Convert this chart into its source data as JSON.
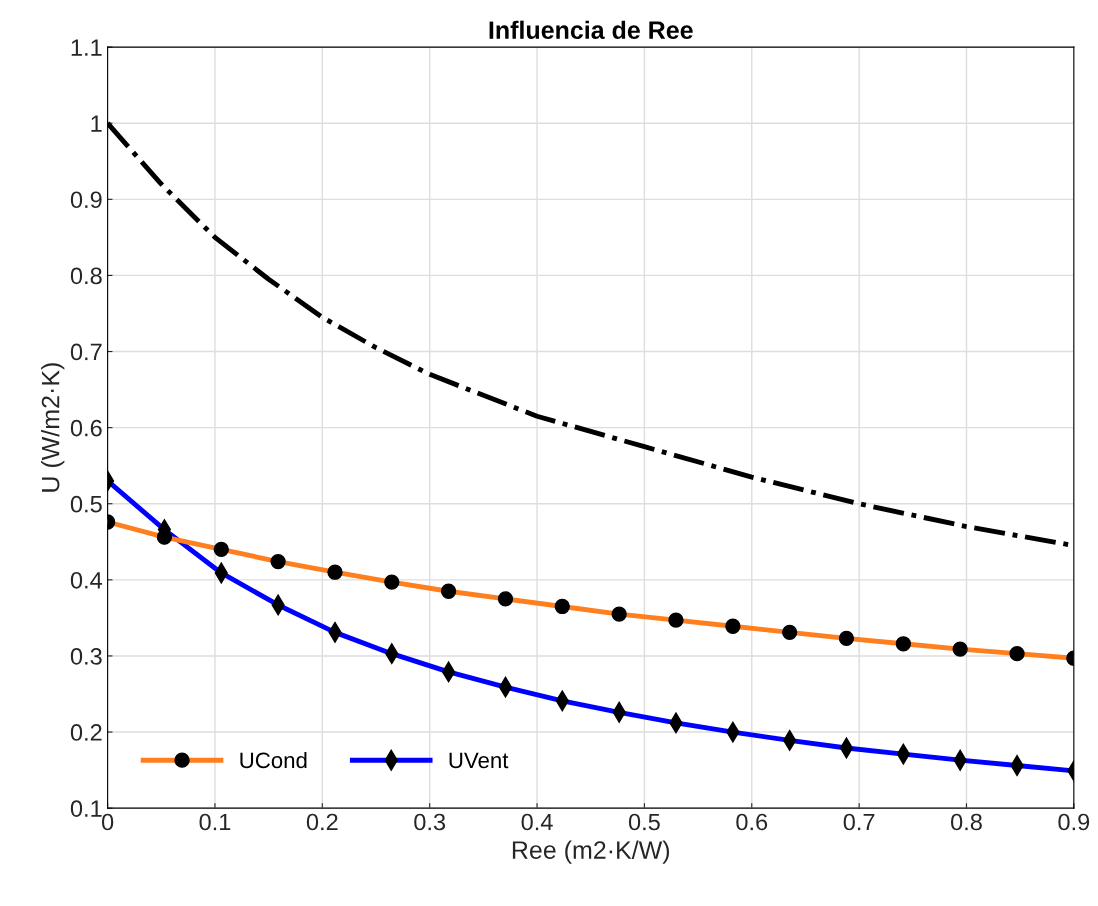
{
  "chart_data": {
    "type": "line",
    "title": "Influencia de Ree",
    "xlabel": "Ree (m2·K/W)",
    "ylabel": "U (W/m2·K)",
    "xlim": [
      0,
      0.9
    ],
    "ylim": [
      0.1,
      1.1
    ],
    "xticks": [
      0,
      0.1,
      0.2,
      0.3,
      0.4,
      0.5,
      0.6,
      0.7,
      0.8,
      0.9
    ],
    "yticks": [
      0.1,
      0.2,
      0.3,
      0.4,
      0.5,
      0.6,
      0.7,
      0.8,
      0.9,
      1,
      1.1
    ],
    "grid": true,
    "legend": "bottom left",
    "series": [
      {
        "name": "UCond",
        "color": "#ff7f1f",
        "marker": "circle",
        "line_style": "solid",
        "x": [
          0,
          0.0529,
          0.1059,
          0.1588,
          0.2118,
          0.2647,
          0.3176,
          0.3706,
          0.4235,
          0.4765,
          0.5294,
          0.5824,
          0.6353,
          0.6882,
          0.7412,
          0.7941,
          0.8471,
          0.9
        ],
        "values": [
          0.476,
          0.456,
          0.44,
          0.424,
          0.41,
          0.397,
          0.385,
          0.375,
          0.365,
          0.355,
          0.347,
          0.339,
          0.331,
          0.323,
          0.316,
          0.309,
          0.303,
          0.297
        ]
      },
      {
        "name": "UVent",
        "color": "#0000ff",
        "marker": "diamond",
        "line_style": "solid",
        "x": [
          0,
          0.0529,
          0.1059,
          0.1588,
          0.2118,
          0.2647,
          0.3176,
          0.3706,
          0.4235,
          0.4765,
          0.5294,
          0.5824,
          0.6353,
          0.6882,
          0.7412,
          0.7941,
          0.8471,
          0.9
        ],
        "values": [
          0.53,
          0.466,
          0.409,
          0.367,
          0.331,
          0.303,
          0.279,
          0.259,
          0.241,
          0.226,
          0.212,
          0.2,
          0.189,
          0.179,
          0.171,
          0.163,
          0.156,
          0.149
        ]
      },
      {
        "color": "#000000",
        "marker": "none",
        "line_style": "dashdot",
        "x": [
          0,
          0.05,
          0.1,
          0.15,
          0.2,
          0.25,
          0.3,
          0.4,
          0.5,
          0.6,
          0.7,
          0.8,
          0.9
        ],
        "values": [
          1.0,
          0.92,
          0.85,
          0.795,
          0.745,
          0.705,
          0.67,
          0.615,
          0.575,
          0.535,
          0.5,
          0.47,
          0.445
        ]
      }
    ]
  }
}
